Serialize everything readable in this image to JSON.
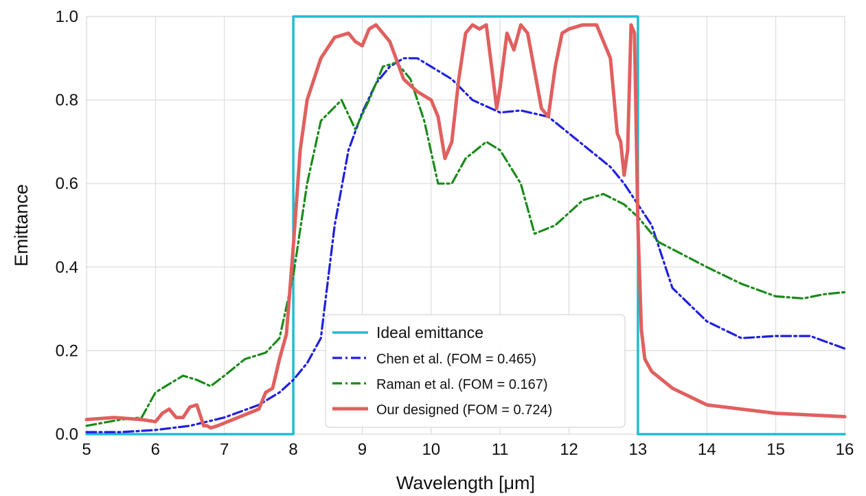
{
  "chart_data": {
    "type": "line",
    "title": "",
    "xlabel": "Wavelength [μm]",
    "ylabel": "Emittance",
    "xlim": [
      5,
      16
    ],
    "ylim": [
      0,
      1
    ],
    "xticks": [
      5,
      6,
      7,
      8,
      9,
      10,
      11,
      12,
      13,
      14,
      15,
      16
    ],
    "yticks": [
      0,
      0.2,
      0.4,
      0.6,
      0.8,
      1.0
    ],
    "xtick_labels": [
      "5",
      "6",
      "7",
      "8",
      "9",
      "10",
      "11",
      "12",
      "13",
      "14",
      "15",
      "16"
    ],
    "ytick_labels": [
      "0.0",
      "0.2",
      "0.4",
      "0.6",
      "0.8",
      "1.0"
    ],
    "grid": true,
    "legend_position": "bottom-center",
    "series": [
      {
        "name": "Ideal emittance",
        "color": "#1fbcd2",
        "style": "solid",
        "x": [
          5,
          8,
          8,
          13,
          13,
          16
        ],
        "y": [
          0,
          0,
          1,
          1,
          0,
          0
        ]
      },
      {
        "name": "Chen et al. (FOM = 0.465)",
        "color": "#1f1fe0",
        "style": "dashdot",
        "x": [
          5,
          5.5,
          6,
          6.5,
          7,
          7.5,
          7.8,
          8,
          8.2,
          8.4,
          8.6,
          8.8,
          9,
          9.2,
          9.4,
          9.6,
          9.8,
          10,
          10.3,
          10.6,
          11,
          11.3,
          11.7,
          12,
          12.3,
          12.6,
          12.8,
          13,
          13.2,
          13.5,
          14,
          14.5,
          15,
          15.5,
          16
        ],
        "y": [
          0.005,
          0.005,
          0.01,
          0.02,
          0.04,
          0.07,
          0.1,
          0.13,
          0.17,
          0.23,
          0.5,
          0.68,
          0.77,
          0.84,
          0.88,
          0.9,
          0.9,
          0.88,
          0.85,
          0.8,
          0.77,
          0.775,
          0.76,
          0.72,
          0.68,
          0.64,
          0.6,
          0.55,
          0.5,
          0.35,
          0.27,
          0.23,
          0.235,
          0.235,
          0.205
        ]
      },
      {
        "name": "Raman et al. (FOM = 0.167)",
        "color": "#1a8a1a",
        "style": "dashdot",
        "x": [
          5,
          5.5,
          5.8,
          6,
          6.2,
          6.4,
          6.6,
          6.8,
          7,
          7.3,
          7.6,
          7.8,
          8,
          8.2,
          8.4,
          8.7,
          8.9,
          9.1,
          9.3,
          9.5,
          9.7,
          9.9,
          10.1,
          10.3,
          10.5,
          10.8,
          11,
          11.3,
          11.5,
          11.8,
          12.2,
          12.5,
          12.8,
          13,
          13.3,
          14,
          14.5,
          15,
          15.4,
          15.7,
          16
        ],
        "y": [
          0.02,
          0.035,
          0.04,
          0.1,
          0.12,
          0.14,
          0.13,
          0.115,
          0.14,
          0.18,
          0.195,
          0.23,
          0.38,
          0.6,
          0.75,
          0.8,
          0.73,
          0.8,
          0.88,
          0.89,
          0.85,
          0.75,
          0.6,
          0.6,
          0.66,
          0.7,
          0.68,
          0.6,
          0.48,
          0.5,
          0.56,
          0.575,
          0.55,
          0.52,
          0.46,
          0.4,
          0.36,
          0.33,
          0.325,
          0.335,
          0.34
        ]
      },
      {
        "name": "Our designed (FOM = 0.724)",
        "color": "#e0605f",
        "style": "solid",
        "x": [
          5,
          5.4,
          5.8,
          6,
          6.1,
          6.2,
          6.3,
          6.4,
          6.5,
          6.6,
          6.7,
          6.75,
          6.8,
          6.9,
          7.2,
          7.5,
          7.6,
          7.7,
          7.8,
          7.9,
          8,
          8.1,
          8.2,
          8.4,
          8.6,
          8.8,
          8.9,
          9,
          9.1,
          9.2,
          9.4,
          9.6,
          9.8,
          10,
          10.1,
          10.2,
          10.3,
          10.4,
          10.5,
          10.6,
          10.7,
          10.8,
          10.9,
          10.95,
          11,
          11.1,
          11.2,
          11.3,
          11.4,
          11.5,
          11.6,
          11.7,
          11.8,
          11.9,
          12,
          12.2,
          12.4,
          12.6,
          12.7,
          12.75,
          12.8,
          12.85,
          12.9,
          12.95,
          13,
          13.05,
          13.1,
          13.2,
          13.5,
          14,
          15,
          16
        ],
        "y": [
          0.035,
          0.04,
          0.035,
          0.03,
          0.05,
          0.06,
          0.04,
          0.04,
          0.065,
          0.07,
          0.02,
          0.02,
          0.015,
          0.02,
          0.04,
          0.06,
          0.1,
          0.11,
          0.18,
          0.24,
          0.45,
          0.68,
          0.8,
          0.9,
          0.95,
          0.96,
          0.94,
          0.93,
          0.97,
          0.98,
          0.94,
          0.85,
          0.82,
          0.8,
          0.76,
          0.66,
          0.7,
          0.85,
          0.96,
          0.98,
          0.97,
          0.98,
          0.85,
          0.78,
          0.83,
          0.96,
          0.92,
          0.98,
          0.96,
          0.87,
          0.78,
          0.76,
          0.88,
          0.96,
          0.97,
          0.98,
          0.98,
          0.9,
          0.72,
          0.7,
          0.62,
          0.68,
          0.98,
          0.96,
          0.5,
          0.25,
          0.18,
          0.15,
          0.11,
          0.07,
          0.05,
          0.042
        ]
      }
    ]
  }
}
